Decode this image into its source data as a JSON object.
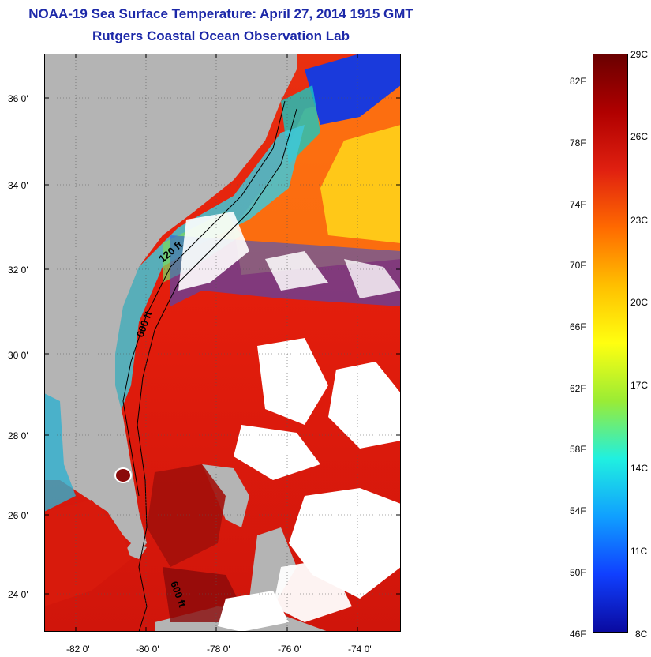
{
  "header": {
    "title": "NOAA-19 Sea Surface Temperature:  April 27, 2014 1915 GMT",
    "subtitle": "Rutgers Coastal Ocean Observation Lab"
  },
  "map": {
    "lat_labels": [
      "36 0'",
      "34 0'",
      "32 0'",
      "30 0'",
      "28 0'",
      "26 0'",
      "24 0'"
    ],
    "lon_labels": [
      "-82 0'",
      "-80 0'",
      "-78 0'",
      "-76 0'",
      "-74 0'"
    ],
    "isobath_labels": [
      "120 ft",
      "600 ft",
      "600 ft"
    ],
    "colors": {
      "land": "#b4b4b4",
      "cloud": "#ffffff",
      "warm_sea": "#e11a0c",
      "hot_sea": "#a3100a"
    }
  },
  "colorbar": {
    "f_labels": [
      "82F",
      "78F",
      "74F",
      "70F",
      "66F",
      "62F",
      "58F",
      "54F",
      "50F",
      "46F"
    ],
    "c_labels": [
      "29C",
      "26C",
      "23C",
      "20C",
      "17C",
      "14C",
      "11C",
      "8C"
    ],
    "gradient": [
      "#6a0000",
      "#b00000",
      "#e02010",
      "#ff6a00",
      "#ffbf00",
      "#ffff10",
      "#9aec35",
      "#20f0e0",
      "#10a0ff",
      "#1040ff",
      "#0a0aa0"
    ]
  }
}
